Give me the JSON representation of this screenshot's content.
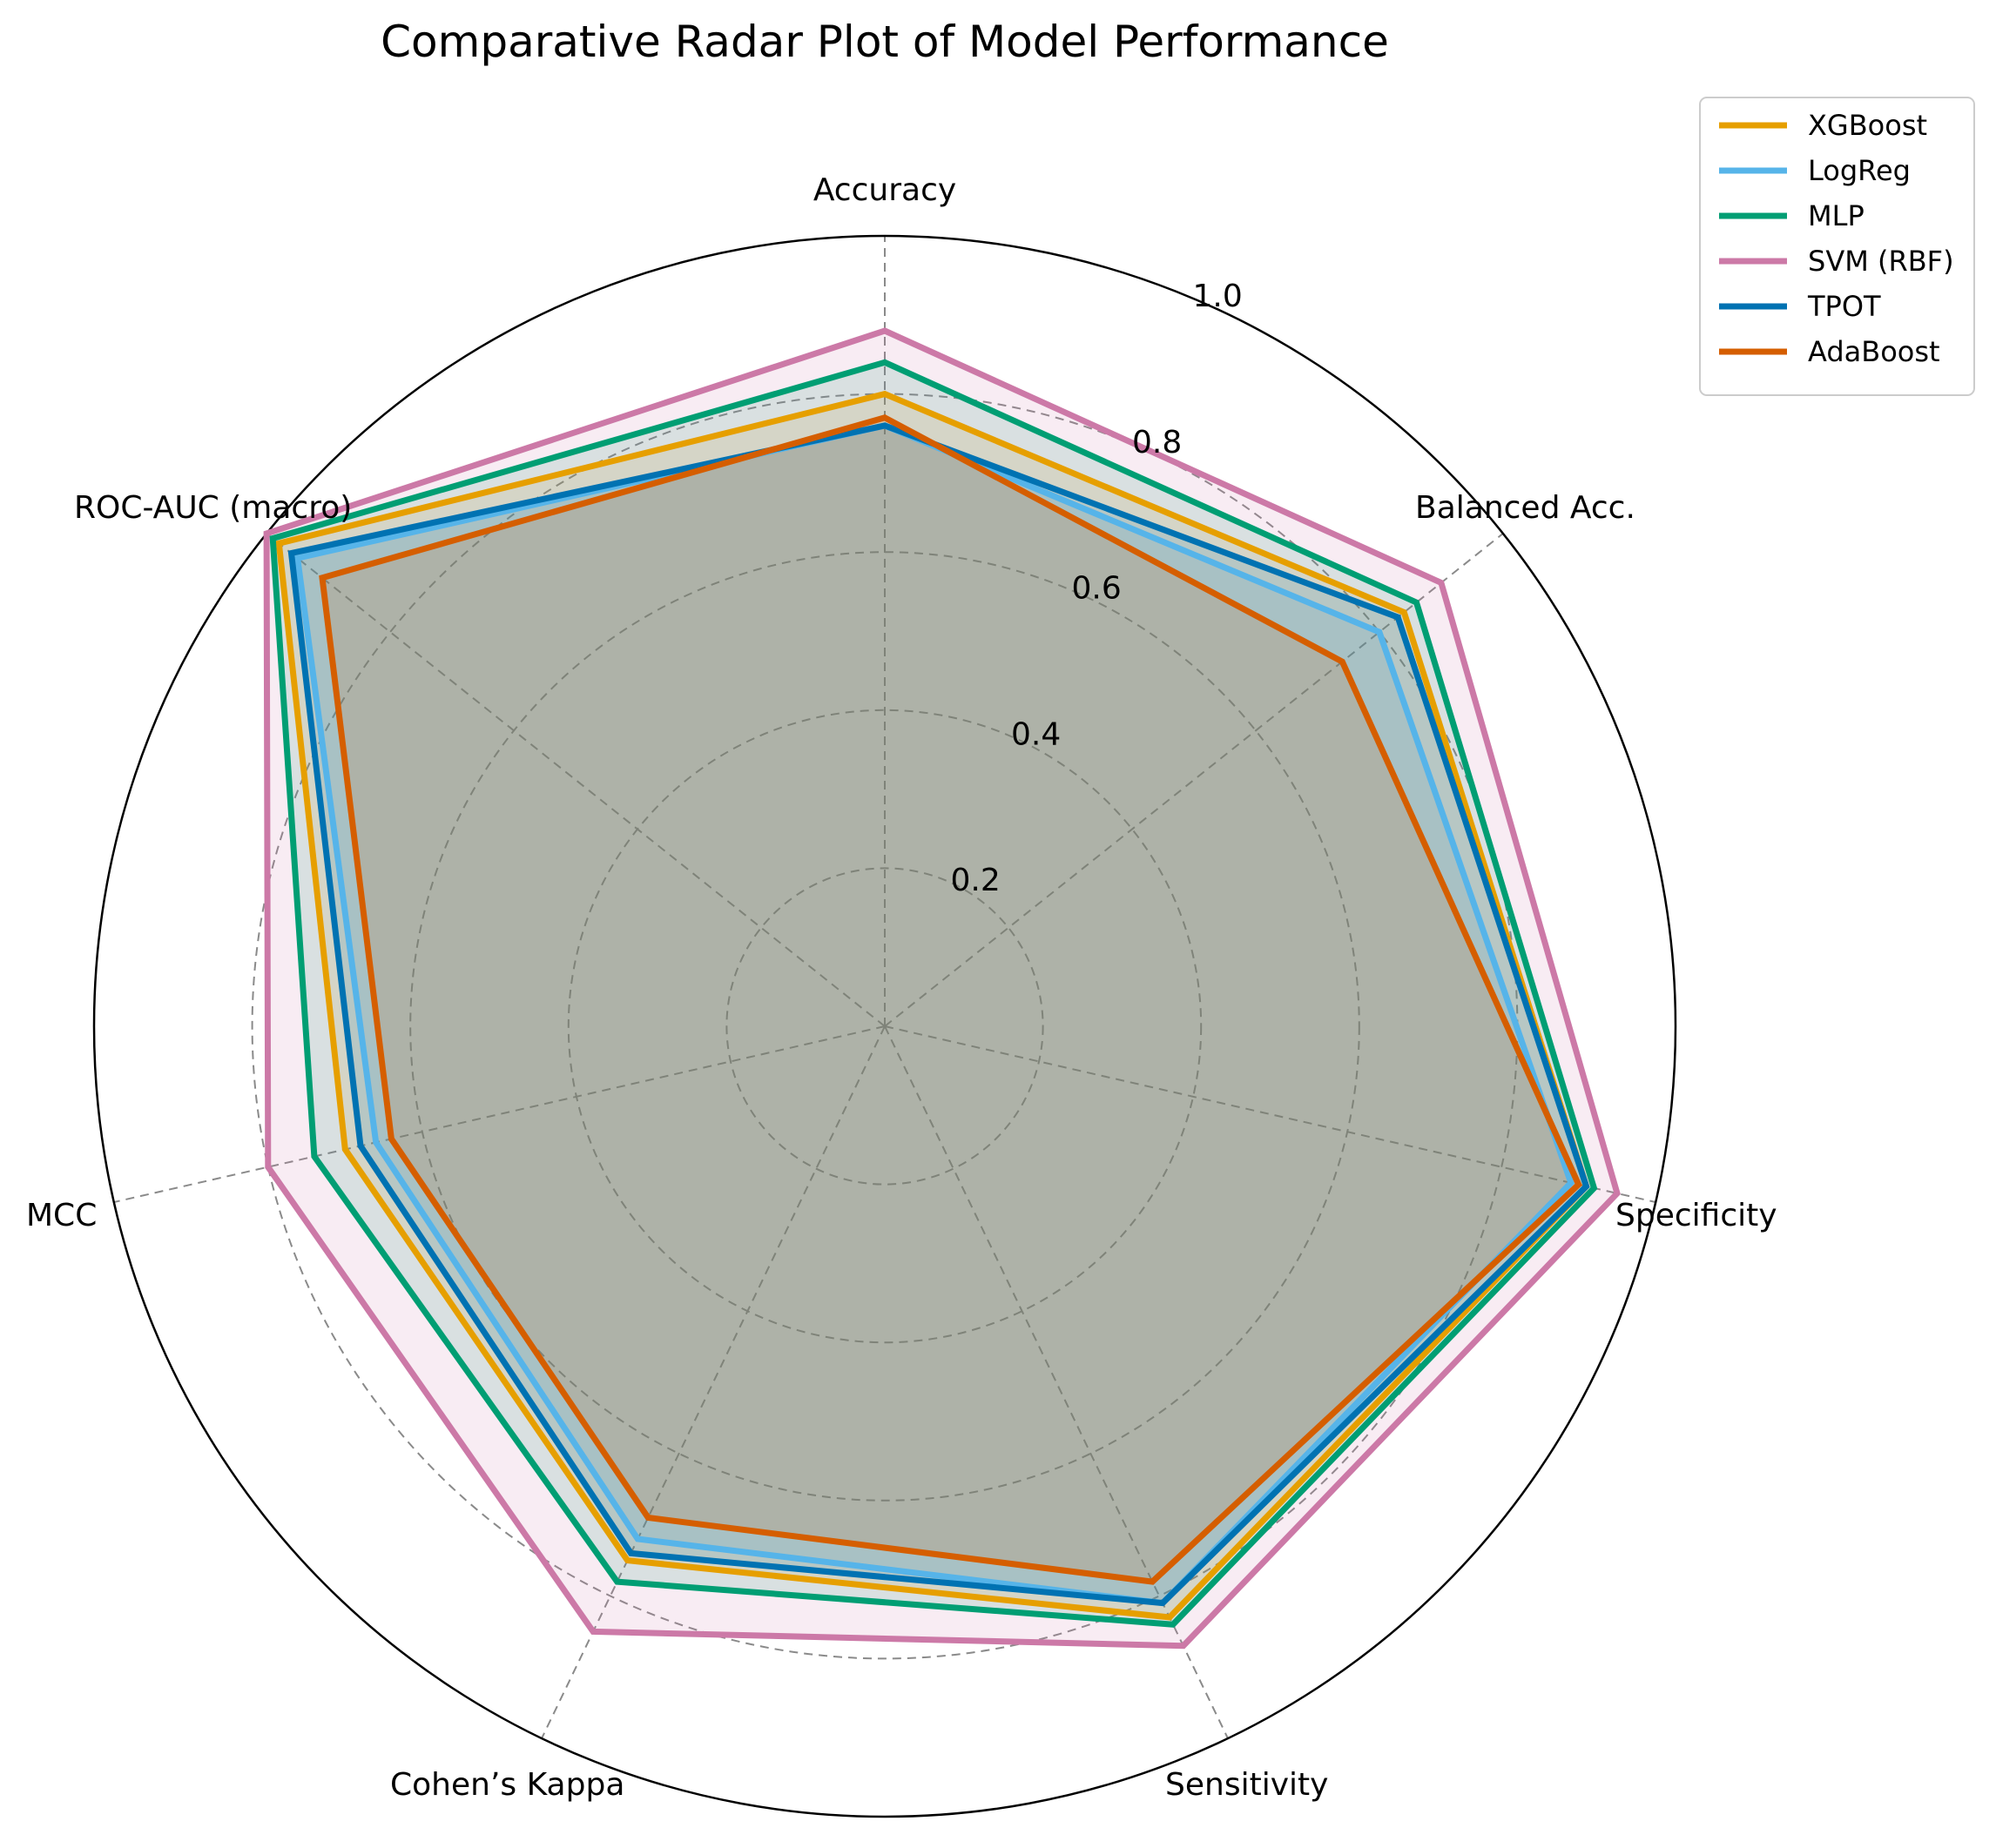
{
  "chart_data": {
    "type": "radar",
    "title": "Comparative Radar Plot of Model Performance",
    "categories": [
      "Accuracy",
      "Balanced Acc.",
      "Specificity",
      "Sensitivity",
      "Cohen’s Kappa",
      "MCC",
      "ROC-AUC (macro)"
    ],
    "rlim": [
      0,
      1.0
    ],
    "rticks": [
      0.2,
      0.4,
      0.6,
      0.8,
      1.0
    ],
    "rtick_labels": [
      "0.2",
      "0.4",
      "0.6",
      "0.8",
      "1.0"
    ],
    "grid": true,
    "legend_position": "upper-right, outside plot",
    "series": [
      {
        "name": "XGBoost",
        "color": "#E69F00",
        "values": [
          0.8,
          0.84,
          0.91,
          0.83,
          0.75,
          0.7,
          0.98
        ]
      },
      {
        "name": "LogReg",
        "color": "#56B4E9",
        "values": [
          0.76,
          0.8,
          0.89,
          0.81,
          0.72,
          0.66,
          0.95
        ]
      },
      {
        "name": "MLP",
        "color": "#009E73",
        "values": [
          0.84,
          0.86,
          0.92,
          0.84,
          0.78,
          0.74,
          0.99
        ]
      },
      {
        "name": "SVM (RBF)",
        "color": "#CC79A7",
        "values": [
          0.88,
          0.9,
          0.95,
          0.87,
          0.85,
          0.8,
          1.0
        ]
      },
      {
        "name": "TPOT",
        "color": "#0072B2",
        "values": [
          0.76,
          0.83,
          0.91,
          0.81,
          0.74,
          0.68,
          0.96
        ]
      },
      {
        "name": "AdaBoost",
        "color": "#D55E00",
        "values": [
          0.77,
          0.74,
          0.9,
          0.78,
          0.69,
          0.64,
          0.91
        ]
      }
    ]
  }
}
